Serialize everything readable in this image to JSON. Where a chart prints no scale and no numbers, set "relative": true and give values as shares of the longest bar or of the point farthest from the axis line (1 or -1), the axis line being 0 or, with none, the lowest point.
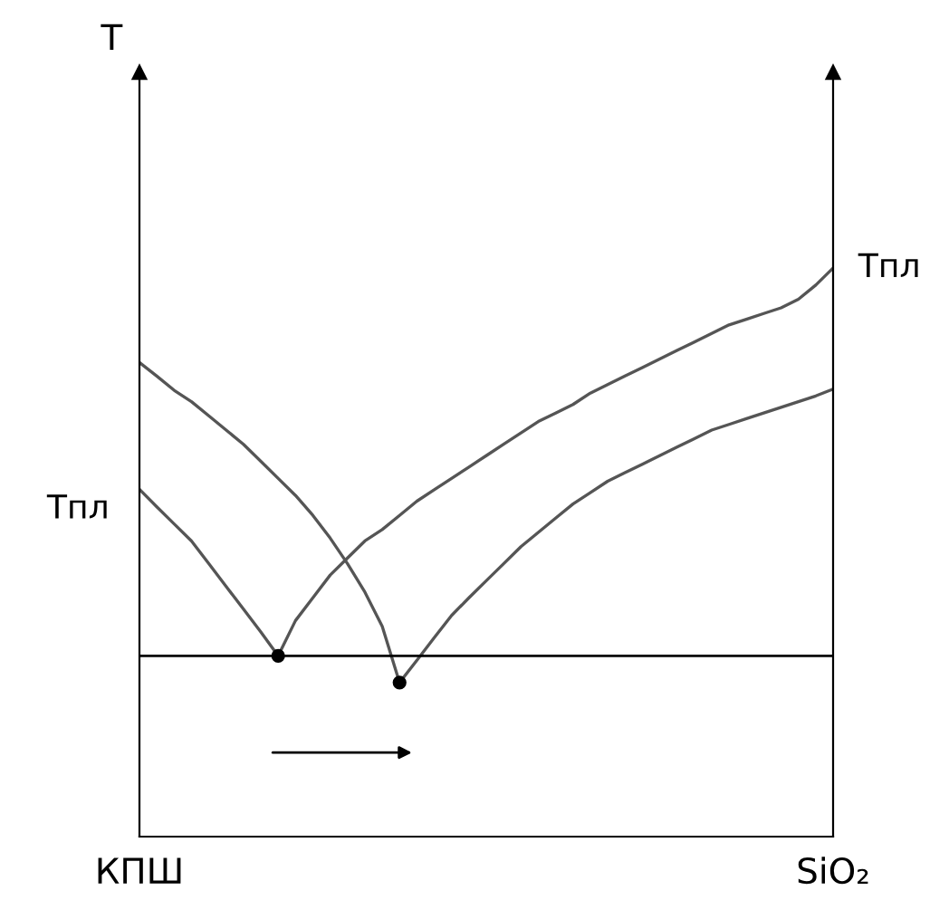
{
  "chart_data": {
    "type": "line",
    "relative": true,
    "categories": [
      "КПШ",
      null,
      null,
      null,
      null,
      null,
      null,
      null,
      null,
      null,
      null,
      null,
      null,
      null,
      null,
      null,
      null,
      null,
      null,
      null,
      null,
      null,
      null,
      null,
      null,
      null,
      null,
      null,
      null,
      null,
      null,
      null,
      null,
      null,
      null,
      null,
      null,
      null,
      null,
      null,
      "SiO₂"
    ],
    "series": [
      {
        "color": "#555555",
        "values": [
          0.611,
          0.58,
          0.55,
          0.52,
          0.48,
          0.44,
          0.4,
          0.36,
          0.318,
          null,
          null,
          null,
          null,
          null,
          null,
          null,
          null,
          null,
          null,
          null,
          null,
          null,
          null,
          null,
          null,
          null,
          null,
          null,
          null,
          null,
          null,
          null,
          null,
          null,
          null,
          null,
          null,
          null,
          null,
          null,
          null
        ]
      },
      {
        "color": "#555555",
        "values": [
          null,
          null,
          null,
          null,
          null,
          null,
          null,
          null,
          0.318,
          0.38,
          0.42,
          0.46,
          0.49,
          0.52,
          0.54,
          0.565,
          0.59,
          0.61,
          0.63,
          0.65,
          0.67,
          0.69,
          0.71,
          0.73,
          0.745,
          0.76,
          0.78,
          0.795,
          0.81,
          0.825,
          0.84,
          0.855,
          0.87,
          0.885,
          0.9,
          0.91,
          0.92,
          0.93,
          0.945,
          0.97,
          1.0
        ]
      },
      {
        "color": "#555555",
        "values": [
          0.834,
          0.81,
          0.785,
          0.765,
          0.74,
          0.715,
          0.69,
          0.66,
          0.63,
          0.6,
          0.565,
          0.525,
          0.48,
          0.43,
          0.37,
          0.271,
          null,
          null,
          null,
          null,
          null,
          null,
          null,
          null,
          null,
          null,
          null,
          null,
          null,
          null,
          null,
          null,
          null,
          null,
          null,
          null,
          null,
          null,
          null,
          null,
          null
        ]
      },
      {
        "color": "#555555",
        "values": [
          null,
          null,
          null,
          null,
          null,
          null,
          null,
          null,
          null,
          null,
          null,
          null,
          null,
          null,
          null,
          0.271,
          0.31,
          0.35,
          0.389,
          0.42,
          0.45,
          0.48,
          0.51,
          0.535,
          0.56,
          0.585,
          0.605,
          0.625,
          0.64,
          0.655,
          0.67,
          0.685,
          0.7,
          0.715,
          0.725,
          0.735,
          0.745,
          0.755,
          0.765,
          0.775,
          0.787
        ]
      },
      {
        "type": "scatter",
        "color": "#000000",
        "marker": "circle",
        "values": [
          null,
          null,
          null,
          null,
          null,
          null,
          null,
          null,
          0.318,
          null,
          null,
          null,
          null,
          null,
          null,
          0.271,
          null,
          null,
          null,
          null,
          null,
          null,
          null,
          null,
          null,
          null,
          null,
          null,
          null,
          null,
          null,
          null,
          null,
          null,
          null,
          null,
          null,
          null,
          null,
          null,
          null
        ]
      }
    ],
    "ref_lines": [
      {
        "axis": "y",
        "value": 0.318,
        "label": null,
        "color": "#000000"
      }
    ],
    "annotations": [
      "T",
      {
        "text": "Tпл",
        "x": "КПШ",
        "y": 0.611
      },
      {
        "text": "Tпл",
        "x": "SiO₂",
        "y": 1.0
      }
    ],
    "grid": false
  }
}
